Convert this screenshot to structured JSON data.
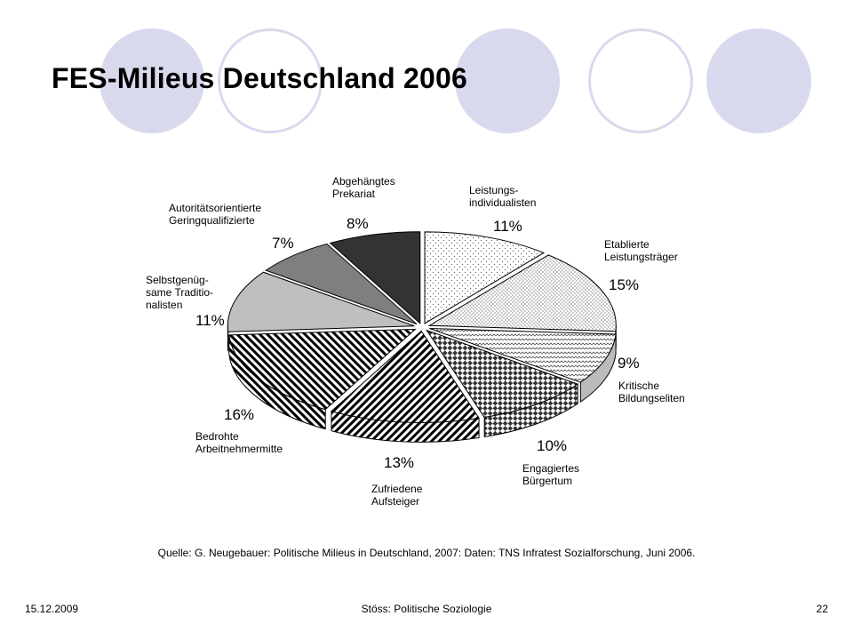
{
  "slide": {
    "title": "FES-Milieus Deutschland 2006",
    "source": "Quelle: G. Neugebauer: Politische Milieus in Deutschland, 2007: Daten: TNS Infratest Sozialforschung, Juni 2006."
  },
  "footer": {
    "date": "15.12.2009",
    "center": "Stöss: Politische Soziologie",
    "page": "22"
  },
  "colors": {
    "circle_fill": "#d9d9ee"
  },
  "chart_data": {
    "type": "pie",
    "title": "",
    "slices": [
      {
        "label_lines": [
          "Leistungs-",
          "individualisten"
        ],
        "value": 11,
        "pct_label": "11%",
        "pattern": "dots"
      },
      {
        "label_lines": [
          "Etablierte",
          "Leistungsträger"
        ],
        "value": 15,
        "pct_label": "15%",
        "pattern": "dots-dense"
      },
      {
        "label_lines": [
          "Kritische",
          "Bildungseliten"
        ],
        "value": 9,
        "pct_label": "9%",
        "pattern": "zigzag"
      },
      {
        "label_lines": [
          "Engagiertes",
          "Bürgertum"
        ],
        "value": 10,
        "pct_label": "10%",
        "pattern": "checker"
      },
      {
        "label_lines": [
          "Zufriedene",
          "Aufsteiger"
        ],
        "value": 13,
        "pct_label": "13%",
        "pattern": "diag-right"
      },
      {
        "label_lines": [
          "Bedrohte",
          "Arbeitnehmermitte"
        ],
        "value": 16,
        "pct_label": "16%",
        "pattern": "diag-left"
      },
      {
        "label_lines": [
          "Selbstgenüg-",
          "same Traditio-",
          "nalisten"
        ],
        "value": 11,
        "pct_label": "11%",
        "pattern": "light-gray"
      },
      {
        "label_lines": [
          "Autoritätsorientierte",
          "Geringqualifizierte"
        ],
        "value": 7,
        "pct_label": "7%",
        "pattern": "mid-gray"
      },
      {
        "label_lines": [
          "Abgehängtes",
          "Prekariat"
        ],
        "value": 8,
        "pct_label": "8%",
        "pattern": "dark-gray"
      }
    ]
  }
}
